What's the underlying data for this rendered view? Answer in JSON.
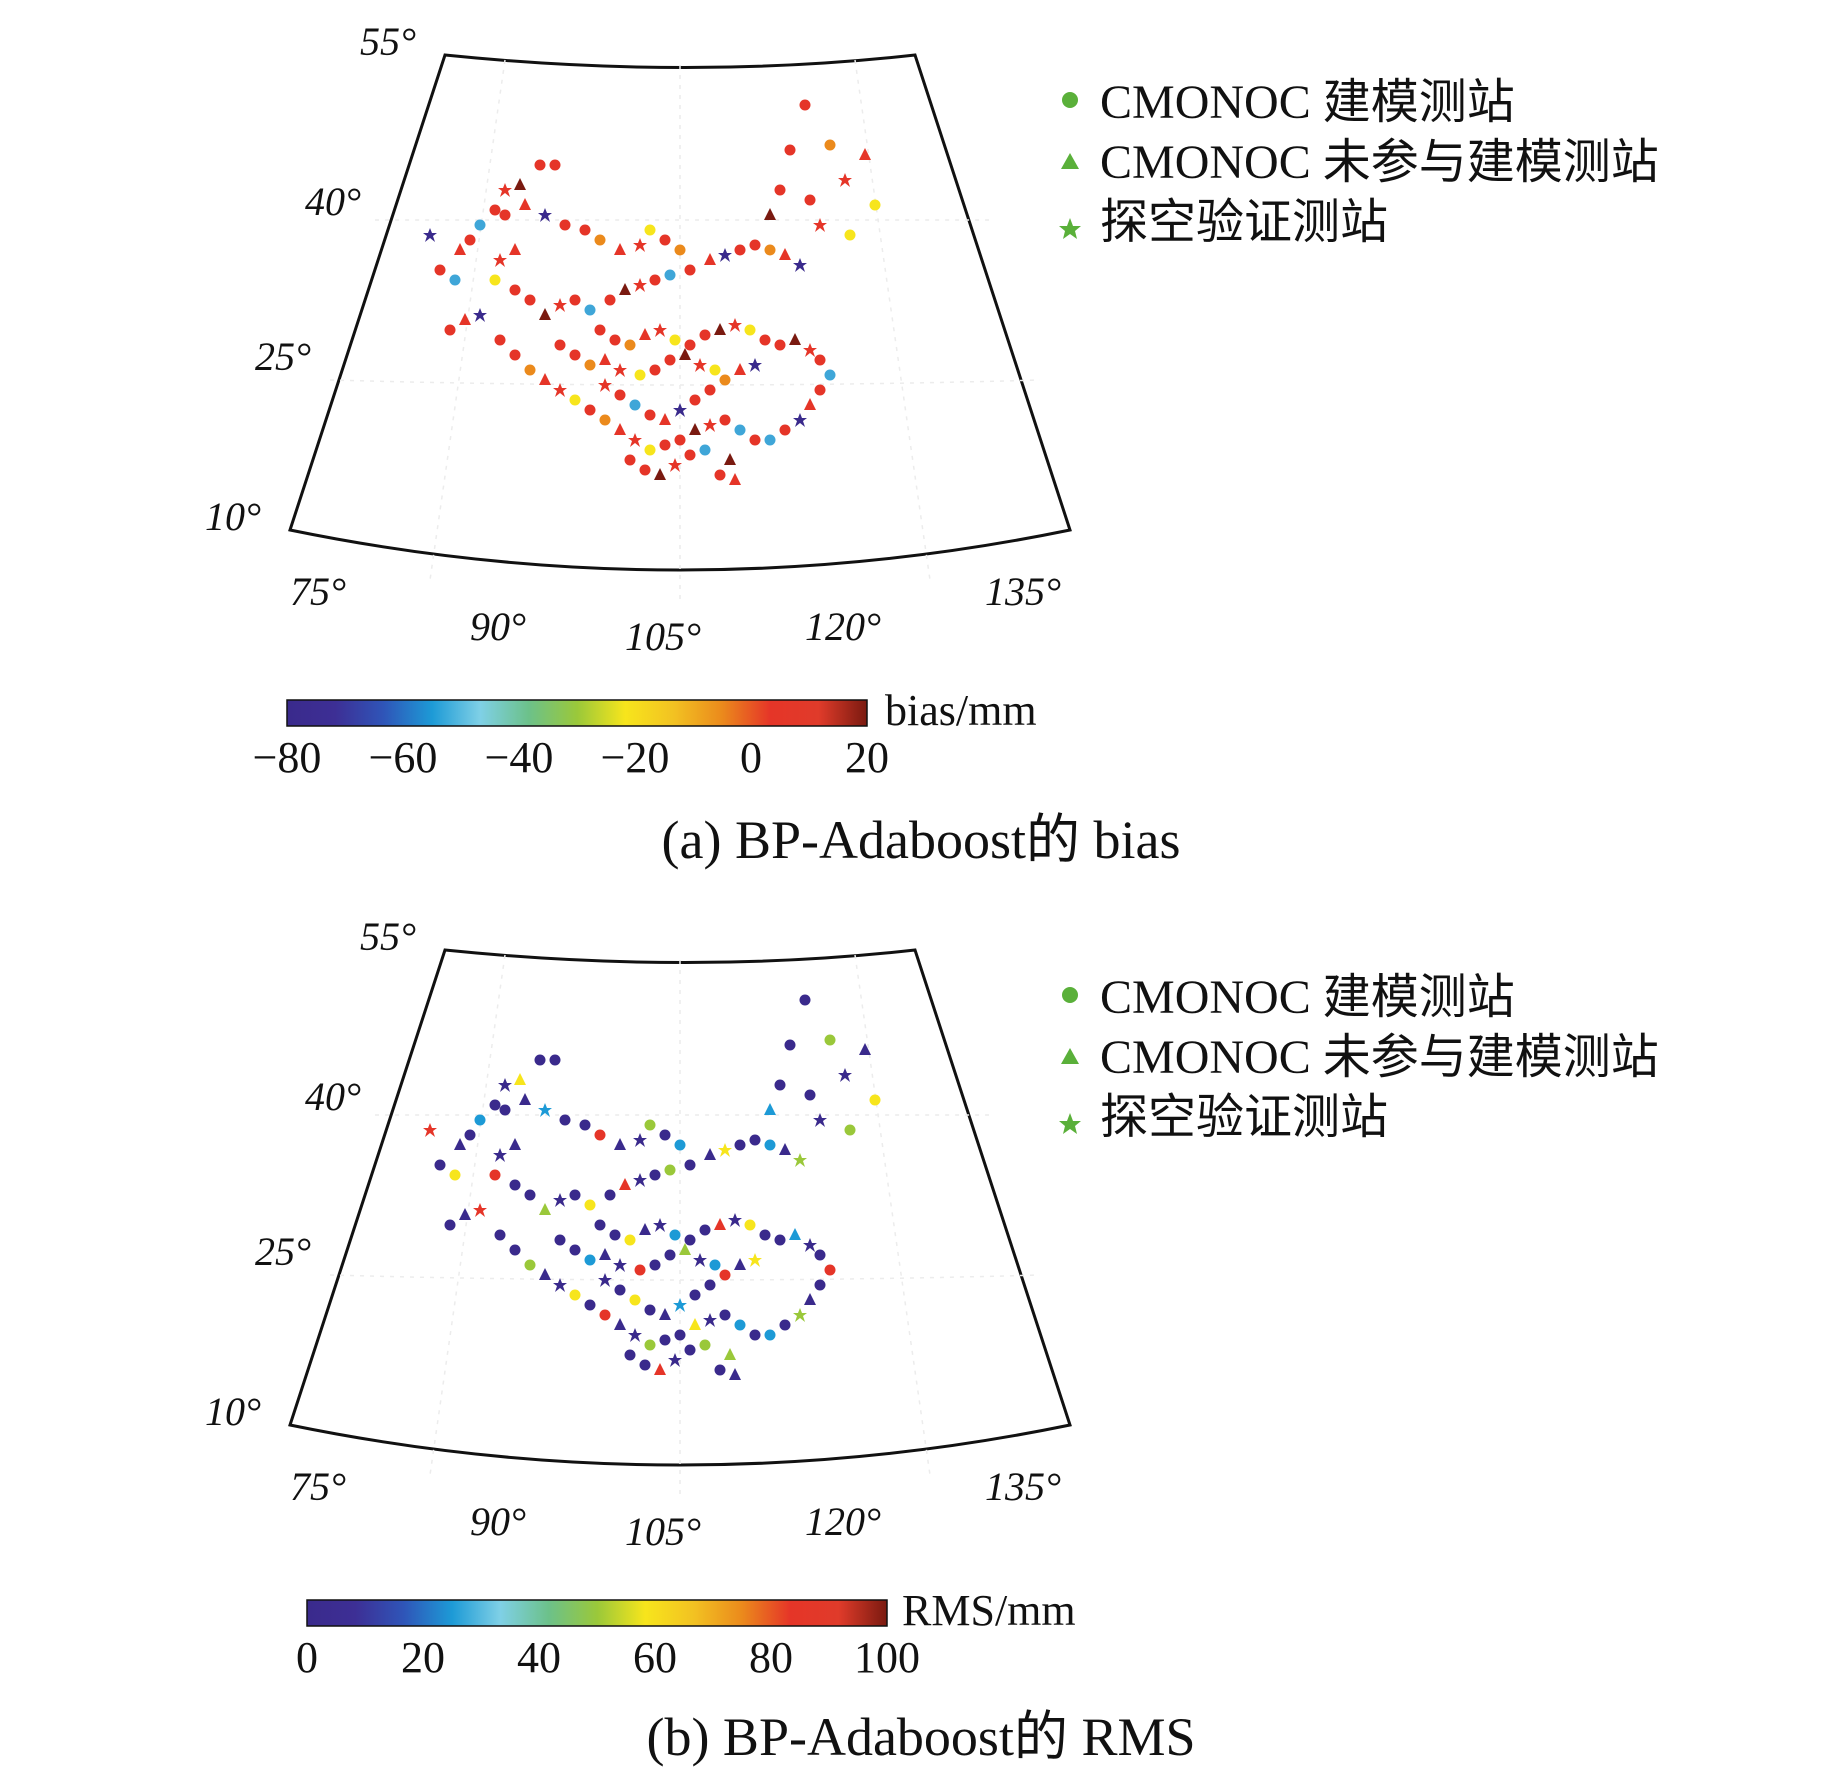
{
  "panels": [
    {
      "id": "a",
      "caption": "(a) BP-Adaboost的 bias",
      "lat_labels": [
        "55°",
        "40°",
        "25°",
        "10°"
      ],
      "lon_labels": [
        "75°",
        "90°",
        "105°",
        "120°",
        "135°"
      ],
      "legend": [
        {
          "marker": "circle",
          "label": "CMONOC 建模测站"
        },
        {
          "marker": "triangle",
          "label": "CMONOC 未参与建模测站"
        },
        {
          "marker": "star",
          "label": "探空验证测站"
        }
      ],
      "colorbar": {
        "label": "bias/mm",
        "ticks": [
          "−80",
          "−60",
          "−40",
          "−20",
          "0",
          "20"
        ],
        "range": [
          -80,
          20
        ]
      },
      "dominant_color": "#e53528",
      "accent_colors": [
        "#f7e51c",
        "#eb8a1c",
        "#3a2a8c",
        "#3fa6d8",
        "#7a1a10"
      ]
    },
    {
      "id": "b",
      "caption": "(b) BP-Adaboost的 RMS",
      "lat_labels": [
        "55°",
        "40°",
        "25°",
        "10°"
      ],
      "lon_labels": [
        "75°",
        "90°",
        "105°",
        "120°",
        "135°"
      ],
      "legend": [
        {
          "marker": "circle",
          "label": "CMONOC 建模测站"
        },
        {
          "marker": "triangle",
          "label": "CMONOC 未参与建模测站"
        },
        {
          "marker": "star",
          "label": "探空验证测站"
        }
      ],
      "colorbar": {
        "label": "RMS/mm",
        "ticks": [
          "0",
          "20",
          "40",
          "60",
          "80",
          "100"
        ],
        "range": [
          0,
          100
        ]
      },
      "dominant_color": "#3a2a8c",
      "accent_colors": [
        "#1d9ad6",
        "#f7e51c",
        "#9ac83a",
        "#e53528"
      ]
    }
  ],
  "colormap": [
    "#3a2a8c",
    "#3d2f95",
    "#2f55b8",
    "#1d9ad6",
    "#7fd0e6",
    "#6cc18a",
    "#9ac83a",
    "#f7e51c",
    "#f2c222",
    "#eb8a1c",
    "#e53528",
    "#e03b2a",
    "#7a1a10"
  ],
  "legend_marker_color": "#5ab03a"
}
